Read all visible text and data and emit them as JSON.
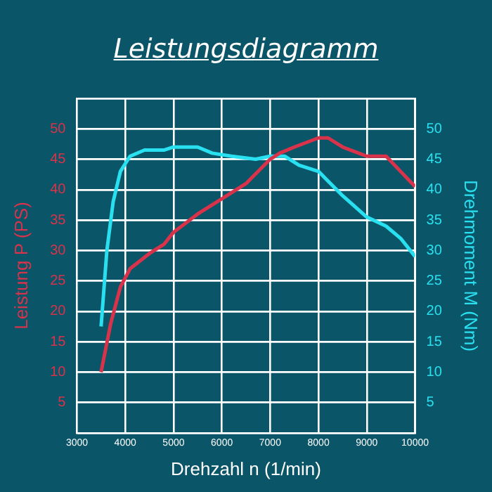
{
  "chart_data": {
    "type": "line",
    "title": "Leistungsdiagramm",
    "xlabel": "Drehzahl n (1/min)",
    "ylabel": "Leistung P (PS)",
    "y2label": "Drehmoment M (Nm)",
    "xlim": [
      3000,
      10000
    ],
    "xticks": [
      3000,
      4000,
      5000,
      6000,
      7000,
      8000,
      9000,
      10000
    ],
    "ylim": [
      0,
      55
    ],
    "yticks": [
      {
        "value": 0,
        "label": null
      },
      5,
      10,
      15,
      20,
      25,
      30,
      35,
      40,
      45,
      50,
      {
        "value": 55,
        "label": null
      }
    ],
    "y2lim": [
      0,
      55
    ],
    "y2ticks": [
      {
        "value": 0,
        "label": null
      },
      5,
      10,
      15,
      20,
      25,
      30,
      35,
      40,
      45,
      50,
      {
        "value": 55,
        "label": null
      }
    ],
    "grid": true,
    "legend": false,
    "marker": "none",
    "line_style": "solid",
    "series": [
      {
        "color": "#d8334a",
        "axis": "y",
        "x": [
          3500,
          3700,
          3900,
          4100,
          4500,
          4800,
          5000,
          5500,
          6000,
          6500,
          7000,
          7200,
          7500,
          8000,
          8200,
          8500,
          9000,
          9400,
          9700,
          10000
        ],
        "values": [
          10,
          18,
          24,
          27,
          29.5,
          31,
          33,
          36,
          38.5,
          41,
          45,
          46,
          47,
          48.5,
          48.5,
          47,
          45.5,
          45.5,
          43,
          40.5
        ]
      },
      {
        "color": "#29e0f0",
        "axis": "y2",
        "x": [
          3500,
          3620,
          3750,
          3900,
          4100,
          4400,
          4800,
          5000,
          5500,
          5800,
          6200,
          6700,
          7000,
          7300,
          7600,
          8000,
          8500,
          9000,
          9400,
          9700,
          10000
        ],
        "values": [
          17.5,
          30,
          38,
          43,
          45.5,
          46.5,
          46.5,
          47,
          47,
          46,
          45.5,
          45,
          45.5,
          45.5,
          44,
          43,
          39,
          35.5,
          34,
          32,
          29
        ]
      }
    ]
  }
}
